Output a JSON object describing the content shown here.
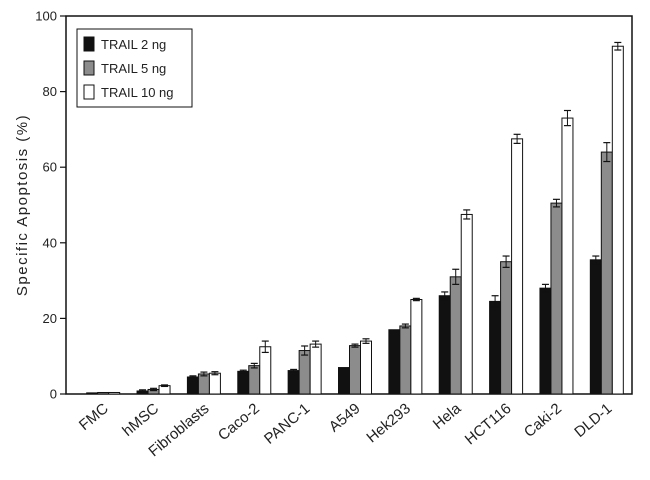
{
  "chart_data": {
    "type": "bar",
    "title": "",
    "xlabel": "",
    "ylabel": "Specific Apoptosis (%)",
    "ylim": [
      0,
      100
    ],
    "yticks": [
      0,
      20,
      40,
      60,
      80,
      100
    ],
    "categories": [
      "FMC",
      "hMSC",
      "Fibroblasts",
      "Caco-2",
      "PANC-1",
      "A549",
      "Hek293",
      "Hela",
      "HCT116",
      "Caki-2",
      "DLD-1"
    ],
    "series": [
      {
        "name": "TRAIL 2 ng",
        "color": "#111111",
        "values": [
          0.3,
          0.8,
          4.5,
          6.0,
          6.2,
          7.0,
          17.0,
          26.0,
          24.5,
          28.0,
          35.5
        ],
        "errors": [
          0,
          0.3,
          0.3,
          0.3,
          0.3,
          0,
          0,
          1.0,
          1.5,
          1.0,
          1.0
        ]
      },
      {
        "name": "TRAIL 5 ng",
        "color": "#8c8c8c",
        "values": [
          0.4,
          1.2,
          5.3,
          7.5,
          11.5,
          12.8,
          18.0,
          31.0,
          35.0,
          50.5,
          64.0
        ],
        "errors": [
          0,
          0.3,
          0.5,
          0.6,
          1.2,
          0.4,
          0.5,
          2.0,
          1.5,
          1.0,
          2.5
        ]
      },
      {
        "name": "TRAIL 10 ng",
        "color": "#ffffff",
        "values": [
          0.4,
          2.2,
          5.5,
          12.5,
          13.2,
          14.0,
          25.0,
          47.5,
          67.5,
          73.0,
          92.0
        ],
        "errors": [
          0,
          0.2,
          0.4,
          1.5,
          0.8,
          0.6,
          0.3,
          1.2,
          1.2,
          2.0,
          1.0
        ]
      }
    ],
    "legend": "top-left",
    "grid": false
  }
}
